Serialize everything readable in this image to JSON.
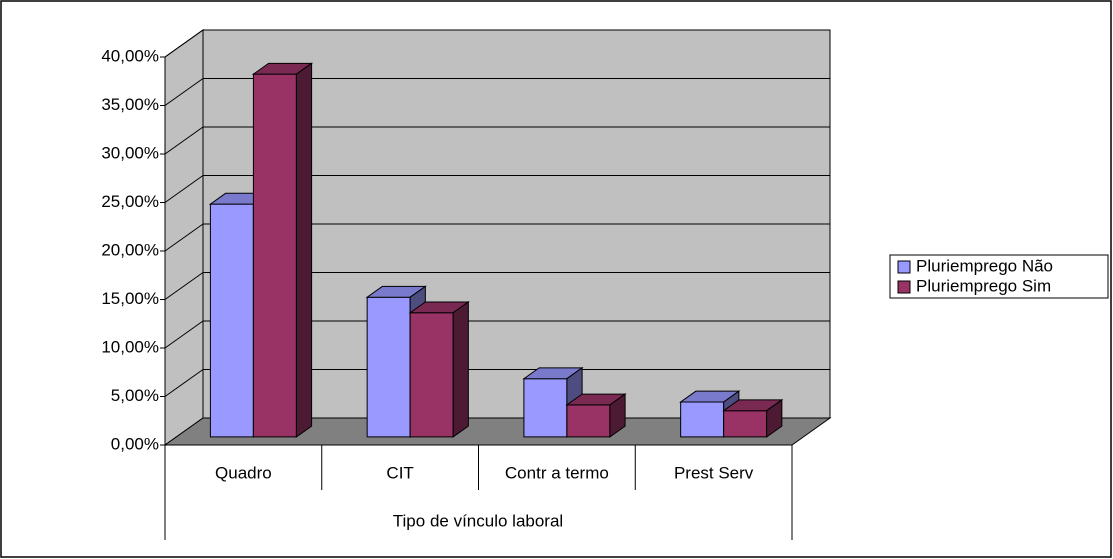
{
  "chart_data": {
    "type": "bar3d",
    "x_label": "Tipo de vínculo laboral",
    "categories": [
      "Quadro",
      "CIT",
      "Contr a termo",
      "Prest Serv"
    ],
    "series": [
      {
        "name": "Pluriemprego Não",
        "color": "#9999ff",
        "values": [
          24.0,
          14.4,
          6.0,
          3.6
        ]
      },
      {
        "name": "Pluriemprego Sim",
        "color": "#993366",
        "values": [
          37.4,
          12.8,
          3.3,
          2.7
        ]
      }
    ],
    "ylim": [
      0,
      40
    ],
    "yticks": [
      {
        "value": 0,
        "label": "0,00%"
      },
      {
        "value": 5,
        "label": "5,00%"
      },
      {
        "value": 10,
        "label": "10,00%"
      },
      {
        "value": 15,
        "label": "15,00%"
      },
      {
        "value": 20,
        "label": "20,00%"
      },
      {
        "value": 25,
        "label": "25,00%"
      },
      {
        "value": 30,
        "label": "30,00%"
      },
      {
        "value": 35,
        "label": "35,00%"
      },
      {
        "value": 40,
        "label": "40,00%"
      }
    ],
    "grid": true,
    "legend": "right"
  }
}
